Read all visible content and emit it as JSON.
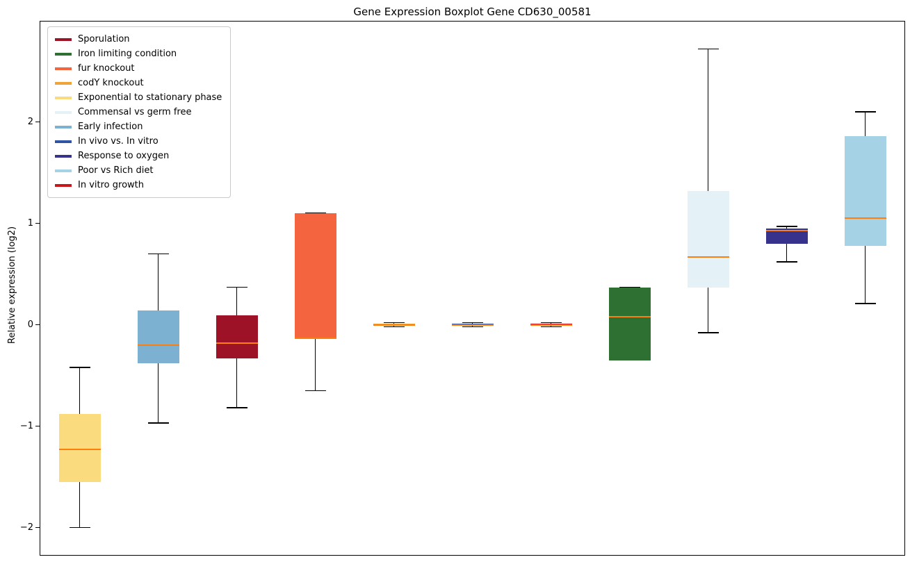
{
  "chart_data": {
    "type": "boxplot",
    "title": "Gene Expression Boxplot Gene CD630_00581",
    "xlabel": "",
    "ylabel": "Relative expression (log2)",
    "ylim": [
      -2.27,
      2.99
    ],
    "grid": false,
    "legend_position": "top-left",
    "median_color": "#ff7f0e",
    "whisker_color": "#000000",
    "yticks": [
      {
        "value": -2,
        "label": "−2"
      },
      {
        "value": -1,
        "label": "−1"
      },
      {
        "value": 0,
        "label": "0"
      },
      {
        "value": 1,
        "label": "1"
      },
      {
        "value": 2,
        "label": "2"
      }
    ],
    "series": [
      {
        "name": "Exponential to stationary phase",
        "color": "#FADB7D",
        "whisker_low": -2.0,
        "q1": -1.55,
        "median": -1.23,
        "q3": -0.88,
        "whisker_high": -0.42
      },
      {
        "name": "Early infection",
        "color": "#7CB1D2",
        "whisker_low": -0.97,
        "q1": -0.38,
        "median": -0.2,
        "q3": 0.14,
        "whisker_high": 0.7
      },
      {
        "name": "Sporulation",
        "color": "#9E1228",
        "whisker_low": -0.82,
        "q1": -0.33,
        "median": -0.18,
        "q3": 0.09,
        "whisker_high": 0.37
      },
      {
        "name": "fur knockout",
        "color": "#F4653F",
        "whisker_low": -0.65,
        "q1": -0.14,
        "median": -0.13,
        "q3": 1.1,
        "whisker_high": 1.1
      },
      {
        "name": "codY knockout",
        "color": "#EFA339",
        "whisker_low": -0.02,
        "q1": -0.01,
        "median": 0.0,
        "q3": 0.01,
        "whisker_high": 0.02
      },
      {
        "name": "In vivo vs. In vitro",
        "color": "#3053A4",
        "whisker_low": -0.02,
        "q1": -0.01,
        "median": 0.0,
        "q3": 0.01,
        "whisker_high": 0.02
      },
      {
        "name": "In vitro growth",
        "color": "#C8161D",
        "whisker_low": -0.02,
        "q1": -0.01,
        "median": 0.0,
        "q3": 0.01,
        "whisker_high": 0.02
      },
      {
        "name": "Iron limiting condition",
        "color": "#2E7031",
        "whisker_low": -0.35,
        "q1": -0.35,
        "median": 0.08,
        "q3": 0.37,
        "whisker_high": 0.37
      },
      {
        "name": "Commensal vs germ free",
        "color": "#E4F2F8",
        "whisker_low": -0.08,
        "q1": 0.37,
        "median": 0.67,
        "q3": 1.32,
        "whisker_high": 2.72
      },
      {
        "name": "Response to oxygen",
        "color": "#37338D",
        "whisker_low": 0.62,
        "q1": 0.8,
        "median": 0.93,
        "q3": 0.95,
        "whisker_high": 0.97
      },
      {
        "name": "Poor vs Rich diet",
        "color": "#A6D2E6",
        "whisker_low": 0.21,
        "q1": 0.78,
        "median": 1.05,
        "q3": 1.86,
        "whisker_high": 2.1
      }
    ],
    "legend": {
      "items": [
        {
          "label": "Sporulation",
          "color": "#9E1228"
        },
        {
          "label": "Iron limiting condition",
          "color": "#2E7031"
        },
        {
          "label": "fur knockout",
          "color": "#F4653F"
        },
        {
          "label": "codY knockout",
          "color": "#EFA339"
        },
        {
          "label": "Exponential to stationary phase",
          "color": "#FADB7D"
        },
        {
          "label": "Commensal vs germ free",
          "color": "#E4F2F8"
        },
        {
          "label": "Early infection",
          "color": "#7CB1D2"
        },
        {
          "label": "In vivo vs. In vitro",
          "color": "#3053A4"
        },
        {
          "label": "Response to oxygen",
          "color": "#37338D"
        },
        {
          "label": "Poor vs Rich diet",
          "color": "#A6D2E6"
        },
        {
          "label": "In vitro growth",
          "color": "#C8161D"
        }
      ]
    }
  }
}
